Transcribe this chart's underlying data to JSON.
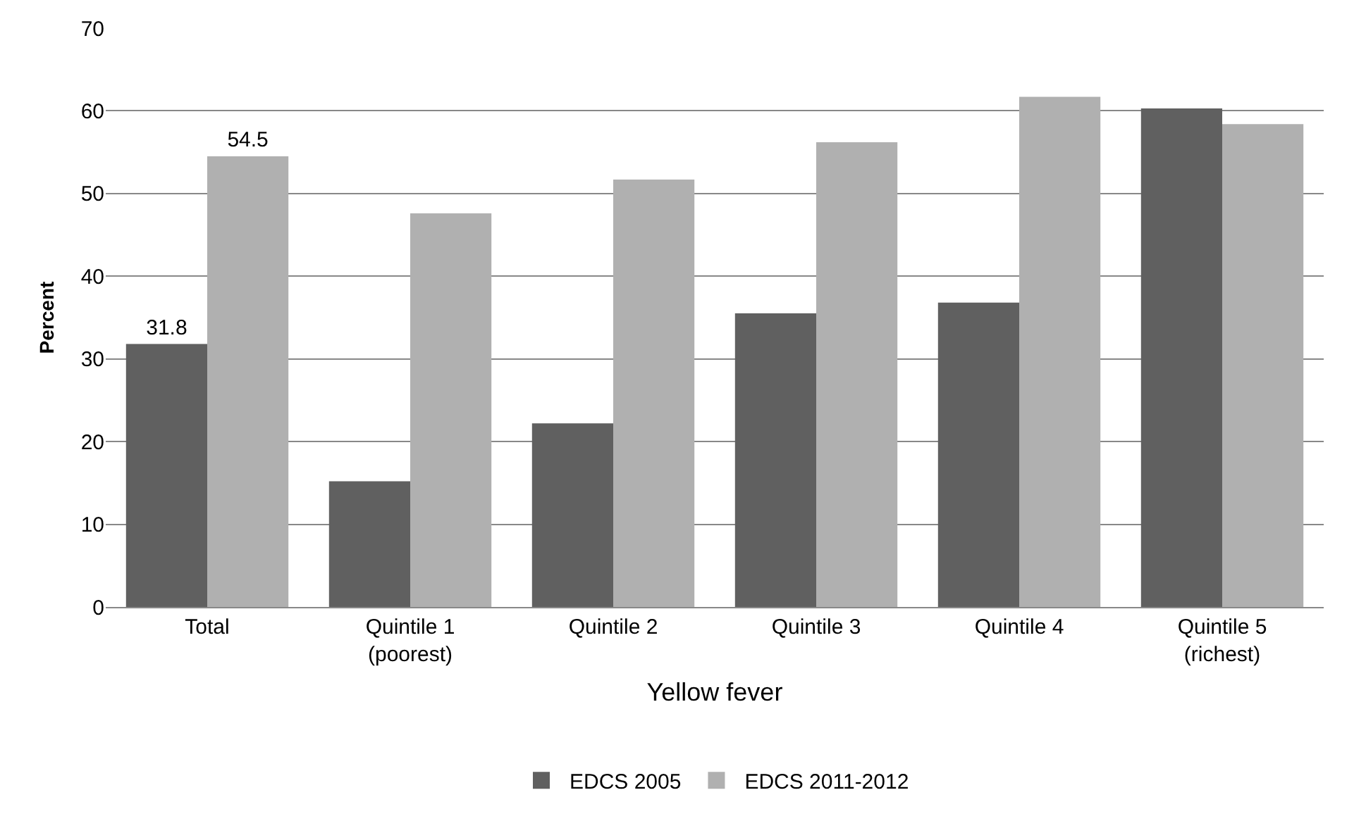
{
  "chart_data": {
    "type": "bar",
    "categories": [
      "Total",
      "Quintile 1\n(poorest)",
      "Quintile 2",
      "Quintile 3",
      "Quintile 4",
      "Quintile 5\n(richest)"
    ],
    "series": [
      {
        "name": "EDCS 2005",
        "color": "#606060",
        "values": [
          31.8,
          15.2,
          22.2,
          35.5,
          36.8,
          60.3
        ],
        "value_labels": [
          "31.8",
          null,
          null,
          null,
          null,
          null
        ]
      },
      {
        "name": "EDCS 2011-2012",
        "color": "#b0b0b0",
        "values": [
          54.5,
          47.6,
          51.7,
          56.2,
          61.7,
          58.4
        ],
        "value_labels": [
          "54.5",
          null,
          null,
          null,
          null,
          null
        ]
      }
    ],
    "xlabel": "Yellow fever",
    "ylabel": "Percent",
    "ylim": [
      0,
      70
    ],
    "yticks": [
      0,
      10,
      20,
      30,
      40,
      50,
      60,
      70
    ],
    "grid": "y",
    "legend": "bottom"
  }
}
